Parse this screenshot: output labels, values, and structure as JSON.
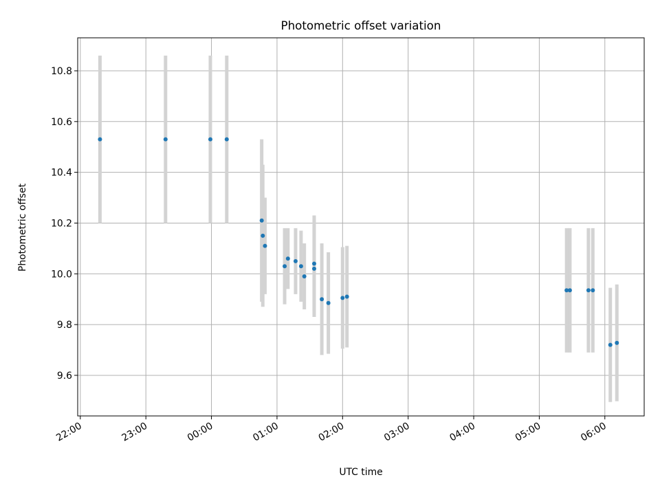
{
  "chart_data": {
    "type": "scatter",
    "title": "Photometric offset variation",
    "xlabel": "UTC time",
    "ylabel": "Photometric offset",
    "x_unit": "hours",
    "x_reference_label": "22:00",
    "xlim": [
      21.96,
      30.6
    ],
    "ylim": [
      9.44,
      10.93
    ],
    "x_ticks": [
      22,
      23,
      24,
      25,
      26,
      27,
      28,
      29,
      30
    ],
    "x_tick_labels": [
      "22:00",
      "23:00",
      "00:00",
      "01:00",
      "02:00",
      "03:00",
      "04:00",
      "05:00",
      "06:00"
    ],
    "y_ticks": [
      9.6,
      9.8,
      10.0,
      10.2,
      10.4,
      10.6,
      10.8
    ],
    "y_tick_labels": [
      "9.6",
      "9.8",
      "10.0",
      "10.2",
      "10.4",
      "10.6",
      "10.8"
    ],
    "grid": true,
    "point_color": "#1f77b4",
    "errorbar_color": "#d3d3d3",
    "points": [
      {
        "time": "22:18",
        "y": 10.53,
        "yerr": 0.33
      },
      {
        "time": "23:18",
        "y": 10.53,
        "yerr": 0.33
      },
      {
        "time": "23:59",
        "y": 10.53,
        "yerr": 0.33
      },
      {
        "time": "00:14",
        "y": 10.53,
        "yerr": 0.33
      },
      {
        "time": "00:46",
        "y": 10.21,
        "yerr": 0.32
      },
      {
        "time": "00:47",
        "y": 10.15,
        "yerr": 0.28
      },
      {
        "time": "00:49",
        "y": 10.11,
        "yerr": 0.19
      },
      {
        "time": "01:07",
        "y": 10.03,
        "yerr": 0.15
      },
      {
        "time": "01:10",
        "y": 10.06,
        "yerr": 0.12
      },
      {
        "time": "01:17",
        "y": 10.05,
        "yerr": 0.13
      },
      {
        "time": "01:22",
        "y": 10.03,
        "yerr": 0.14
      },
      {
        "time": "01:25",
        "y": 9.99,
        "yerr": 0.13
      },
      {
        "time": "01:34",
        "y": 10.04,
        "yerr": 0.19
      },
      {
        "time": "01:34",
        "y": 10.02,
        "yerr": 0.19
      },
      {
        "time": "01:41",
        "y": 9.9,
        "yerr": 0.22
      },
      {
        "time": "01:47",
        "y": 9.885,
        "yerr": 0.2
      },
      {
        "time": "02:00",
        "y": 9.905,
        "yerr": 0.2
      },
      {
        "time": "02:04",
        "y": 9.91,
        "yerr": 0.2
      },
      {
        "time": "05:25",
        "y": 9.935,
        "yerr": 0.245
      },
      {
        "time": "05:28",
        "y": 9.935,
        "yerr": 0.245
      },
      {
        "time": "05:45",
        "y": 9.935,
        "yerr": 0.245
      },
      {
        "time": "05:49",
        "y": 9.935,
        "yerr": 0.245
      },
      {
        "time": "06:05",
        "y": 9.72,
        "yerr": 0.225
      },
      {
        "time": "06:11",
        "y": 9.728,
        "yerr": 0.23
      }
    ]
  }
}
